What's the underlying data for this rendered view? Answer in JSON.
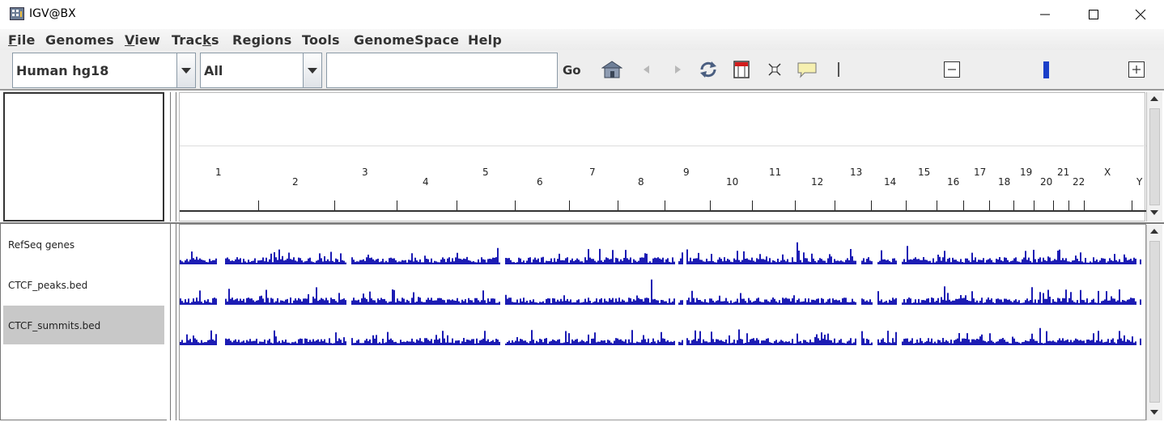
{
  "window": {
    "title": "IGV@BX"
  },
  "menu": [
    {
      "label": "File",
      "mnemonic": "F"
    },
    {
      "label": "Genomes",
      "mnemonic": ""
    },
    {
      "label": "View",
      "mnemonic": "V"
    },
    {
      "label": "Tracks",
      "mnemonic": "k"
    },
    {
      "label": "Regions",
      "mnemonic": ""
    },
    {
      "label": "Tools",
      "mnemonic": ""
    },
    {
      "label": "GenomeSpace",
      "mnemonic": ""
    },
    {
      "label": "Help",
      "mnemonic": ""
    }
  ],
  "toolbar": {
    "genome_value": "Human hg18",
    "chromosome_value": "All",
    "locus_value": "",
    "go_label": "Go",
    "icons": [
      "home-icon",
      "back-icon",
      "forward-icon",
      "refresh-icon",
      "region-of-interest-icon",
      "resize-icon",
      "popup-text-icon",
      "ruler-line-icon"
    ],
    "zoom_level": 0.5
  },
  "ruler": {
    "chromosomes": [
      "1",
      "2",
      "3",
      "4",
      "5",
      "6",
      "7",
      "8",
      "9",
      "10",
      "11",
      "12",
      "13",
      "14",
      "15",
      "16",
      "17",
      "18",
      "19",
      "20",
      "21",
      "22",
      "X",
      "Y"
    ]
  },
  "tracks": [
    {
      "name": "RefSeq genes",
      "selected": false
    },
    {
      "name": "CTCF_peaks.bed",
      "selected": false
    },
    {
      "name": "CTCF_summits.bed",
      "selected": true
    }
  ],
  "colors": {
    "track_bars": "#1c1cb4",
    "selected_track_bg": "#c8c8c8",
    "zoom_marker": "#1a3fc8"
  }
}
